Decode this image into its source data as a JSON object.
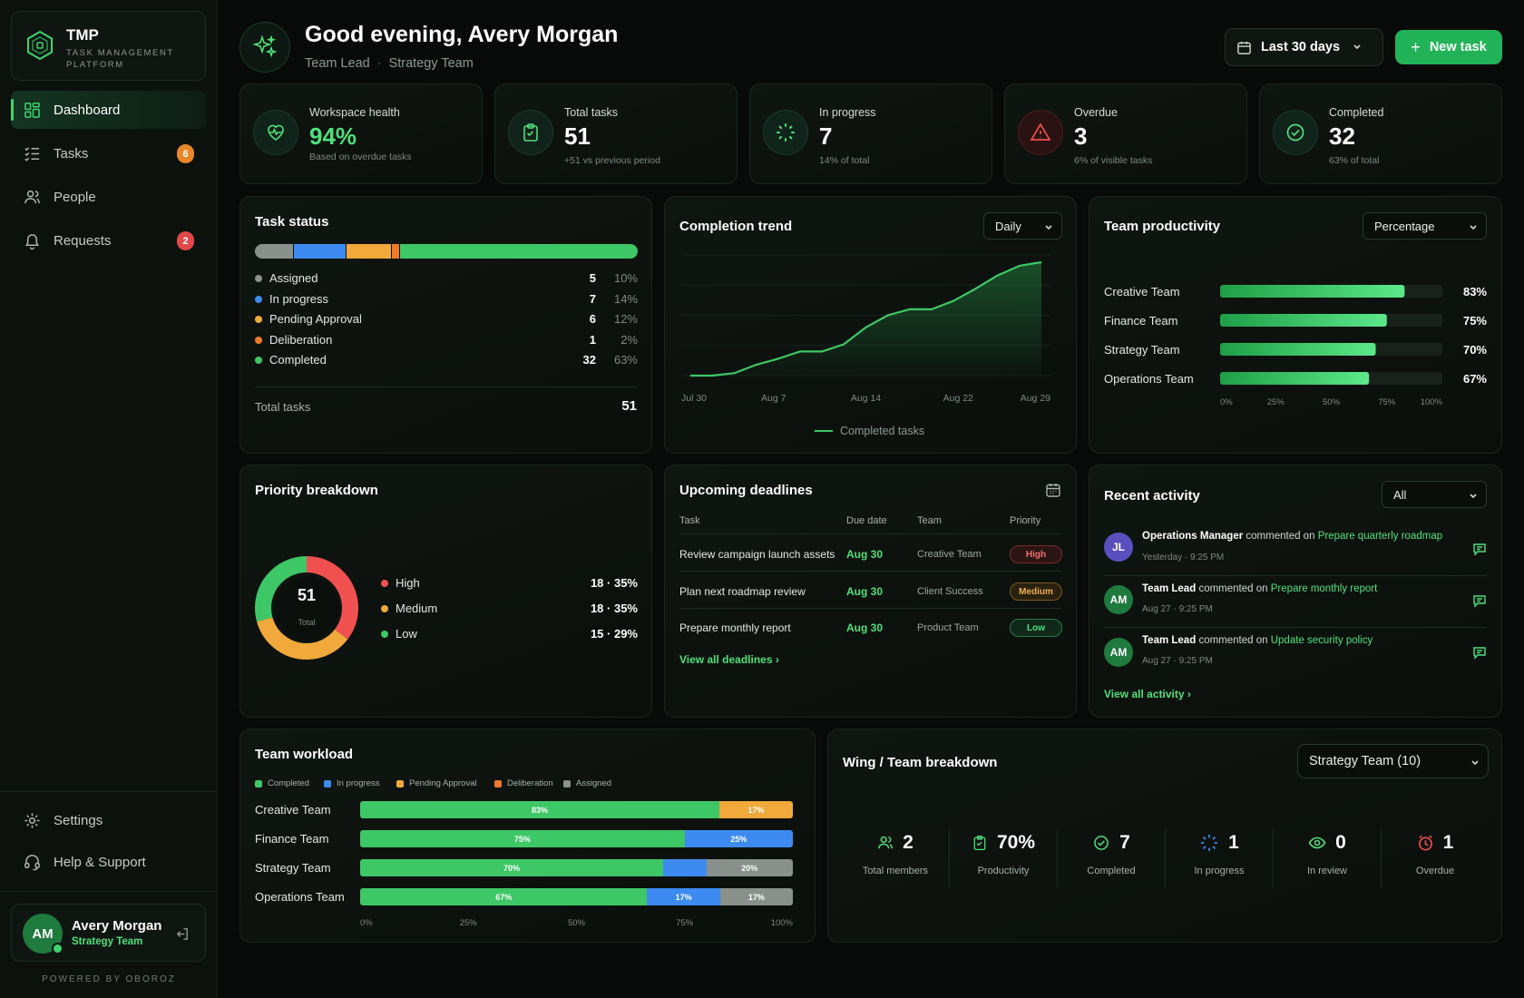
{
  "brand": {
    "name": "TMP",
    "subtitle": "TASK MANAGEMENT PLATFORM"
  },
  "nav": [
    {
      "label": "Dashboard",
      "icon": "dashboard-icon",
      "active": true
    },
    {
      "label": "Tasks",
      "icon": "tasks-icon",
      "badge": "6"
    },
    {
      "label": "People",
      "icon": "people-icon"
    },
    {
      "label": "Requests",
      "icon": "bell-icon",
      "badge": "2"
    }
  ],
  "bottom_nav": [
    {
      "label": "Settings",
      "icon": "settings-icon"
    },
    {
      "label": "Help & Support",
      "icon": "headset-icon"
    }
  ],
  "user": {
    "initials": "AM",
    "name": "Avery Morgan",
    "team": "Strategy Team"
  },
  "powered_by": "POWERED BY OBOROZ",
  "header": {
    "greeting": "Good evening, Avery Morgan",
    "role": "Team Lead",
    "team": "Strategy Team",
    "date_range": "Last 30 days",
    "new_task": "New task"
  },
  "stats": [
    {
      "label": "Workspace health",
      "value": "94%",
      "sub": "Based on overdue tasks",
      "icon": "heart-pulse-icon"
    },
    {
      "label": "Total tasks",
      "value": "51",
      "sub": "+51 vs previous period",
      "icon": "clipboard-icon"
    },
    {
      "label": "In progress",
      "value": "7",
      "sub": "14% of total",
      "icon": "spinner-icon"
    },
    {
      "label": "Overdue",
      "value": "3",
      "sub": "6% of visible tasks",
      "icon": "warning-icon"
    },
    {
      "label": "Completed",
      "value": "32",
      "sub": "63% of total",
      "icon": "check-circle-icon"
    }
  ],
  "task_status": {
    "title": "Task status",
    "items": [
      {
        "label": "Assigned",
        "count": "5",
        "pct": "10%",
        "color": "#8a918c",
        "share": 10
      },
      {
        "label": "In progress",
        "count": "7",
        "pct": "14%",
        "color": "#3d8bf0",
        "share": 14
      },
      {
        "label": "Pending Approval",
        "count": "6",
        "pct": "12%",
        "color": "#f0a93a",
        "share": 12
      },
      {
        "label": "Deliberation",
        "count": "1",
        "pct": "2%",
        "color": "#ef7a2a",
        "share": 2
      },
      {
        "label": "Completed",
        "count": "32",
        "pct": "63%",
        "color": "#3ec766",
        "share": 63
      }
    ],
    "total_label": "Total tasks",
    "total": "51"
  },
  "completion_trend": {
    "title": "Completion trend",
    "select": "Daily",
    "legend": "Completed tasks",
    "chart_data": {
      "type": "area",
      "x_ticks": [
        "Jul 30",
        "Aug 7",
        "Aug 14",
        "Aug 22",
        "Aug 29"
      ],
      "series": [
        {
          "name": "Completed tasks",
          "values": [
            0,
            0,
            0.2,
            0.9,
            1.4,
            2,
            2,
            2.6,
            4,
            5,
            5.5,
            5.5,
            6.2,
            7.2,
            8.3,
            9.1,
            9.4
          ]
        }
      ],
      "ylim": [
        0,
        10
      ],
      "grid": true
    }
  },
  "team_productivity": {
    "title": "Team productivity",
    "select": "Percentage",
    "chart_data": {
      "type": "bar",
      "orientation": "horizontal",
      "categories": [
        "Creative Team",
        "Finance Team",
        "Strategy Team",
        "Operations Team"
      ],
      "values": [
        83,
        75,
        70,
        67
      ],
      "labels": [
        "83%",
        "75%",
        "70%",
        "67%"
      ],
      "x_ticks": [
        "0%",
        "25%",
        "50%",
        "75%",
        "100%"
      ],
      "xlim": [
        0,
        100
      ]
    }
  },
  "priority": {
    "title": "Priority breakdown",
    "center_value": "51",
    "center_label": "Total",
    "chart_data": {
      "type": "pie",
      "donut": true,
      "slices": [
        {
          "label": "High",
          "value": 18,
          "text": "18 · 35%",
          "color": "#f05050"
        },
        {
          "label": "Medium",
          "value": 18,
          "text": "18 · 35%",
          "color": "#f0a93a"
        },
        {
          "label": "Low",
          "value": 15,
          "text": "15 · 29%",
          "color": "#3ec766"
        }
      ]
    }
  },
  "deadlines": {
    "title": "Upcoming deadlines",
    "columns": [
      "Task",
      "Due date",
      "Team",
      "Priority"
    ],
    "rows": [
      {
        "task": "Review campaign launch assets",
        "due": "Aug 30",
        "team": "Creative Team",
        "priority": "High"
      },
      {
        "task": "Plan next roadmap review",
        "due": "Aug 30",
        "team": "Client Success",
        "priority": "Medium"
      },
      {
        "task": "Prepare monthly report",
        "due": "Aug 30",
        "team": "Product Team",
        "priority": "Low"
      }
    ],
    "view_all": "View all deadlines ›"
  },
  "activity": {
    "title": "Recent activity",
    "select": "All",
    "items": [
      {
        "initials": "JL",
        "actor": "Operations Manager",
        "verb": "commented on",
        "target": "Prepare quarterly roadmap",
        "time": "Yesterday · 9:25 PM",
        "color": "#5b4fc0"
      },
      {
        "initials": "AM",
        "actor": "Team Lead",
        "verb": "commented on",
        "target": "Prepare monthly report",
        "time": "Aug 27 · 9:25 PM",
        "color": "#1f7a3e"
      },
      {
        "initials": "AM",
        "actor": "Team Lead",
        "verb": "commented on",
        "target": "Update security policy",
        "time": "Aug 27 · 9:25 PM",
        "color": "#1f7a3e"
      }
    ],
    "view_all": "View all activity ›"
  },
  "workload": {
    "title": "Team workload",
    "legend": [
      {
        "label": "Completed",
        "color": "#3ec766"
      },
      {
        "label": "In progress",
        "color": "#3d8bf0"
      },
      {
        "label": "Pending Approval",
        "color": "#f0a93a"
      },
      {
        "label": "Deliberation",
        "color": "#ef7a2a"
      },
      {
        "label": "Assigned",
        "color": "#8a918c"
      }
    ],
    "chart_data": {
      "type": "bar",
      "orientation": "horizontal",
      "stacked": true,
      "categories": [
        "Creative Team",
        "Finance Team",
        "Strategy Team",
        "Operations Team"
      ],
      "series": [
        {
          "name": "Completed",
          "values": [
            83,
            75,
            70,
            67
          ],
          "labels": [
            "83%",
            "75%",
            "70%",
            "67%"
          ]
        },
        {
          "name": "In progress",
          "values": [
            0,
            25,
            10,
            17
          ],
          "labels": [
            "",
            "25%",
            "",
            "17%"
          ]
        },
        {
          "name": "Pending Approval",
          "values": [
            17,
            0,
            0,
            0
          ],
          "labels": [
            "17%",
            "",
            "",
            ""
          ]
        },
        {
          "name": "Deliberation",
          "values": [
            0,
            0,
            0,
            0
          ],
          "labels": [
            "",
            "",
            "",
            ""
          ]
        },
        {
          "name": "Assigned",
          "values": [
            0,
            0,
            20,
            17
          ],
          "labels": [
            "",
            "",
            "20%",
            "17%"
          ]
        }
      ],
      "x_ticks": [
        "0%",
        "25%",
        "50%",
        "75%",
        "100%"
      ],
      "xlim": [
        0,
        100
      ]
    }
  },
  "wing": {
    "title": "Wing / Team breakdown",
    "select": "Strategy Team (10)",
    "stats": [
      {
        "value": "2",
        "label": "Total members",
        "icon": "people-icon"
      },
      {
        "value": "70%",
        "label": "Productivity",
        "icon": "clipboard-icon"
      },
      {
        "value": "7",
        "label": "Completed",
        "icon": "check-circle-icon"
      },
      {
        "value": "1",
        "label": "In progress",
        "icon": "spinner-icon"
      },
      {
        "value": "0",
        "label": "In review",
        "icon": "eye-icon"
      },
      {
        "value": "1",
        "label": "Overdue",
        "icon": "clock-icon"
      }
    ]
  }
}
